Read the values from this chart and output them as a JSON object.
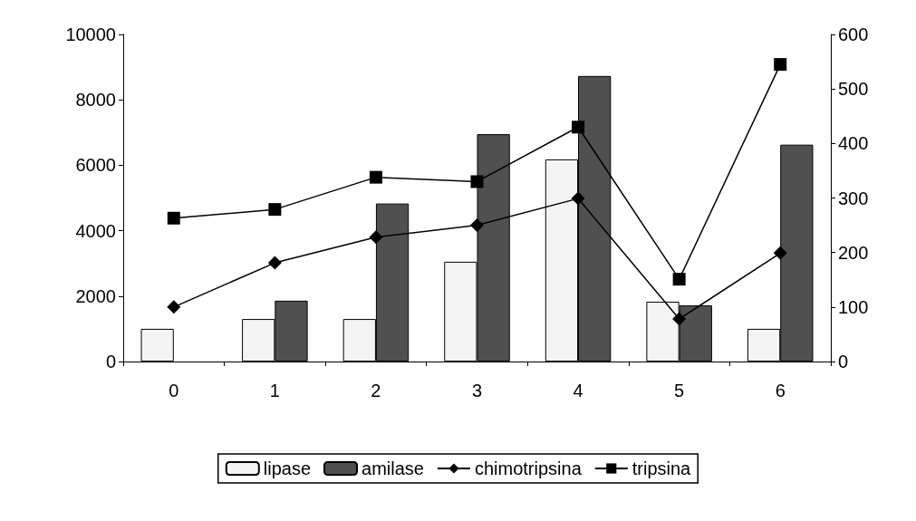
{
  "chart_data": {
    "type": "bar",
    "categories": [
      "0",
      "1",
      "2",
      "3",
      "4",
      "5",
      "6"
    ],
    "series": [
      {
        "name": "lipase",
        "color": "#f4f4f4",
        "values": [
          1000,
          1300,
          1300,
          3050,
          6180,
          1830,
          1000
        ]
      },
      {
        "name": "amilase",
        "color": "#505050",
        "values": [
          null,
          1860,
          4830,
          6950,
          8730,
          1720,
          6630
        ]
      },
      {
        "name": "chimotripsina",
        "type": "line",
        "axis": "y2",
        "color": "#000000",
        "marker": "diamond",
        "values": [
          100,
          181,
          228,
          250,
          299,
          78,
          199
        ]
      },
      {
        "name": "tripsina",
        "type": "line",
        "axis": "y2",
        "color": "#000000",
        "marker": "square",
        "values": [
          263,
          279,
          338,
          330,
          430,
          151,
          545
        ]
      }
    ],
    "ylim": [
      0,
      10000
    ],
    "yticks": [
      0,
      2000,
      4000,
      6000,
      8000,
      10000
    ],
    "y2lim": [
      0,
      600
    ],
    "y2ticks": [
      0,
      100,
      200,
      300,
      400,
      500,
      600
    ],
    "grid": false,
    "legend": "bottom"
  }
}
